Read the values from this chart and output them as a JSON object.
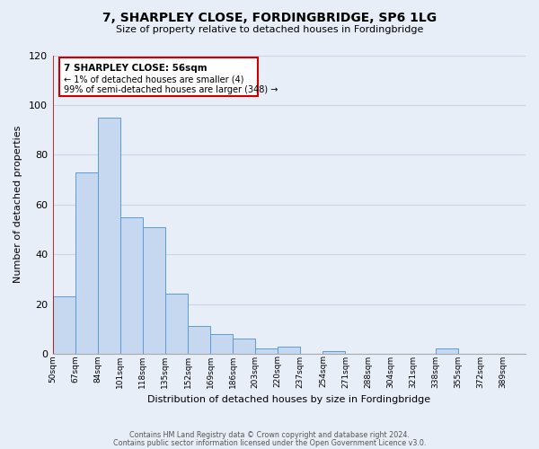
{
  "title": "7, SHARPLEY CLOSE, FORDINGBRIDGE, SP6 1LG",
  "subtitle": "Size of property relative to detached houses in Fordingbridge",
  "xlabel": "Distribution of detached houses by size in Fordingbridge",
  "ylabel": "Number of detached properties",
  "bin_labels": [
    "50sqm",
    "67sqm",
    "84sqm",
    "101sqm",
    "118sqm",
    "135sqm",
    "152sqm",
    "169sqm",
    "186sqm",
    "203sqm",
    "220sqm",
    "237sqm",
    "254sqm",
    "271sqm",
    "288sqm",
    "304sqm",
    "321sqm",
    "338sqm",
    "355sqm",
    "372sqm",
    "389sqm"
  ],
  "bar_values": [
    23,
    73,
    95,
    55,
    51,
    24,
    11,
    8,
    6,
    2,
    3,
    0,
    1,
    0,
    0,
    0,
    0,
    2,
    0,
    0,
    0
  ],
  "bar_color": "#c5d8f0",
  "bar_edge_color": "#5b9bd5",
  "ylim": [
    0,
    120
  ],
  "yticks": [
    0,
    20,
    40,
    60,
    80,
    100,
    120
  ],
  "grid_color": "#c8d4e8",
  "bg_color": "#e8eef7",
  "annotation_box_color": "#ffffff",
  "annotation_box_edge": "#cc0000",
  "annotation_title": "7 SHARPLEY CLOSE: 56sqm",
  "annotation_line1": "← 1% of detached houses are smaller (4)",
  "annotation_line2": "99% of semi-detached houses are larger (348) →",
  "footer1": "Contains HM Land Registry data © Crown copyright and database right 2024.",
  "footer2": "Contains public sector information licensed under the Open Government Licence v3.0."
}
